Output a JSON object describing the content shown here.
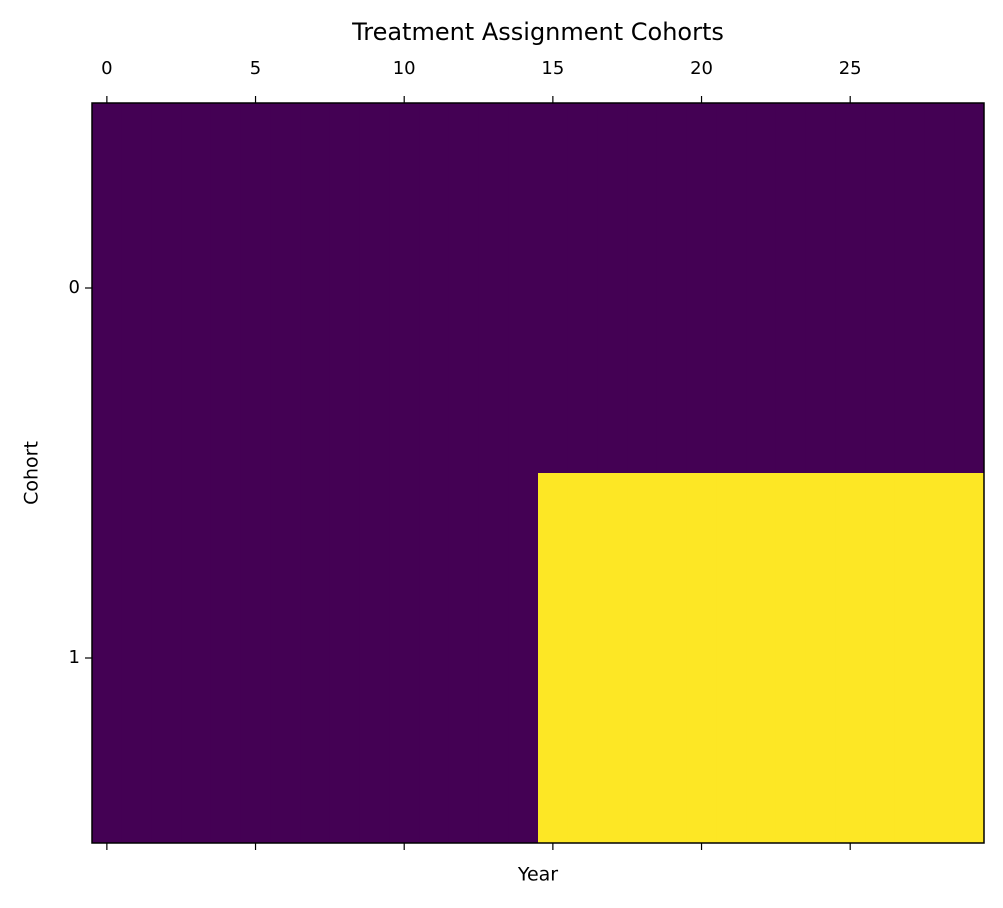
{
  "chart_data": {
    "type": "heatmap",
    "title": "Treatment Assignment Cohorts",
    "x_label": "Year",
    "y_label": "Cohort",
    "values": [
      [
        0,
        0,
        0,
        0,
        0,
        0,
        0,
        0,
        0,
        0,
        0,
        0,
        0,
        0,
        0,
        0,
        0,
        0,
        0,
        0,
        0,
        0,
        0,
        0,
        0,
        0,
        0,
        0,
        0,
        0
      ],
      [
        0,
        0,
        0,
        0,
        0,
        0,
        0,
        0,
        0,
        0,
        0,
        0,
        0,
        0,
        0,
        1,
        1,
        1,
        1,
        1,
        1,
        1,
        1,
        1,
        1,
        1,
        1,
        1,
        1,
        1
      ]
    ],
    "colormap": [
      "#440154",
      "#fde725"
    ],
    "xlim": [
      -0.5,
      29.5
    ],
    "ylim": [
      1.5,
      -0.5
    ],
    "xticks": [
      0,
      5,
      10,
      15,
      20,
      25
    ],
    "yticks": [
      0,
      1
    ]
  }
}
